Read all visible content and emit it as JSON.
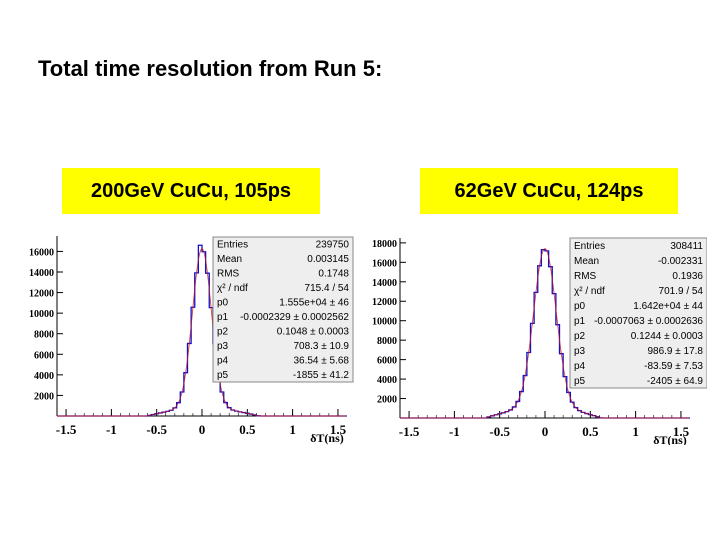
{
  "slide": {
    "title": "Total time resolution from Run 5:"
  },
  "panels": [
    {
      "label": "200GeV CuCu, 105ps",
      "y_ticks": [
        "16000",
        "14000",
        "12000",
        "10000",
        "8000",
        "6000",
        "4000",
        "2000"
      ],
      "x_ticks": [
        "-1.5",
        "-1",
        "-0.5",
        "0",
        "0.5",
        "1",
        "1.5"
      ],
      "xlabel": "δT(ns)",
      "stats": [
        {
          "name": "Entries",
          "value": "239750"
        },
        {
          "name": "Mean",
          "value": "0.003145"
        },
        {
          "name": "RMS",
          "value": "0.1748"
        },
        {
          "name": "χ² / ndf",
          "value": "715.4 / 54"
        },
        {
          "name": "p0",
          "value": "1.555e+04 ± 46"
        },
        {
          "name": "p1",
          "value": "-0.0002329 ± 0.0002562"
        },
        {
          "name": "p2",
          "value": "0.1048 ± 0.0003"
        },
        {
          "name": "p3",
          "value": "708.3 ± 10.9"
        },
        {
          "name": "p4",
          "value": "36.54 ± 5.68"
        },
        {
          "name": "p5",
          "value": "-1855 ± 41.2"
        }
      ]
    },
    {
      "label": "62GeV CuCu,  124ps",
      "y_ticks": [
        "18000",
        "16000",
        "14000",
        "12000",
        "10000",
        "8000",
        "6000",
        "4000",
        "2000"
      ],
      "x_ticks": [
        "-1.5",
        "-1",
        "-0.5",
        "0",
        "0.5",
        "1",
        "1.5"
      ],
      "xlabel": "δT(ns)",
      "stats": [
        {
          "name": "Entries",
          "value": "308411"
        },
        {
          "name": "Mean",
          "value": "-0.002331"
        },
        {
          "name": "RMS",
          "value": "0.1936"
        },
        {
          "name": "χ² / ndf",
          "value": "701.9 / 54"
        },
        {
          "name": "p0",
          "value": "1.642e+04 ± 44"
        },
        {
          "name": "p1",
          "value": "-0.0007063 ± 0.0002636"
        },
        {
          "name": "p2",
          "value": "0.1244 ± 0.0003"
        },
        {
          "name": "p3",
          "value": "986.9 ± 17.8"
        },
        {
          "name": "p4",
          "value": "-83.59 ± 7.53"
        },
        {
          "name": "p5",
          "value": "-2405 ± 64.9"
        }
      ]
    }
  ],
  "chart_data": [
    {
      "type": "bar",
      "xlim": [
        -1.6,
        1.6
      ],
      "ylim": [
        0,
        17500
      ],
      "gaussian": {
        "amplitude": 15550,
        "mean": -0.0002329,
        "sigma": 0.1048
      },
      "background": {
        "p3": 708.3,
        "p4": 36.54,
        "p5": -1855
      },
      "peak_bin": 16600,
      "colors": {
        "histogram": "#1010cc",
        "fit": "#cc1010"
      }
    },
    {
      "type": "bar",
      "xlim": [
        -1.6,
        1.6
      ],
      "ylim": [
        0,
        18500
      ],
      "gaussian": {
        "amplitude": 16420,
        "mean": -0.0007063,
        "sigma": 0.1244
      },
      "background": {
        "p3": 986.9,
        "p4": -83.59,
        "p5": -2405
      },
      "peak_bin": 17300,
      "colors": {
        "histogram": "#1010cc",
        "fit": "#cc1010"
      }
    }
  ]
}
